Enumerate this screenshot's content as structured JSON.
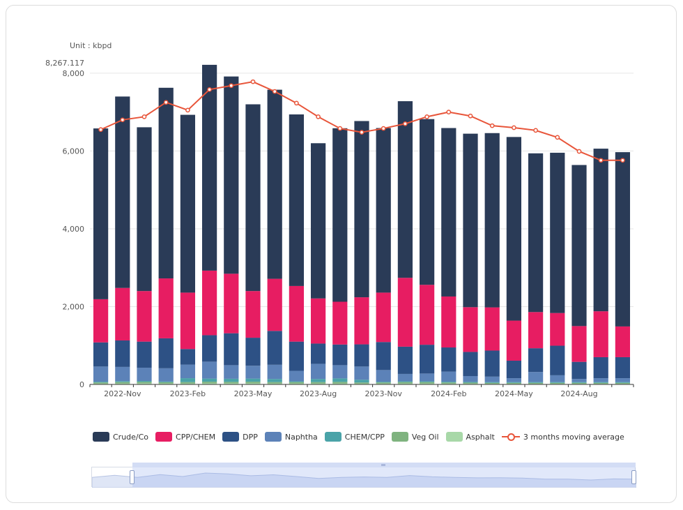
{
  "unit_label": "Unit : kbpd",
  "chart_data": {
    "type": "bar",
    "stacked": true,
    "ylim": [
      0,
      8267.117
    ],
    "y_max_label": "8,267.117",
    "y_ticks": [
      "0",
      "2,000",
      "4,000",
      "6,000",
      "8,000"
    ],
    "y_tick_values": [
      0,
      2000,
      4000,
      6000,
      8000
    ],
    "x_tick_labels": [
      "2022-Nov",
      "2023-Feb",
      "2023-May",
      "2023-Aug",
      "2023-Nov",
      "2024-Feb",
      "2024-May",
      "2024-Aug"
    ],
    "x_tick_months": [
      1,
      4,
      7,
      10,
      13,
      16,
      19,
      22
    ],
    "months": 25,
    "grid": true,
    "legend_position": "bottom",
    "series": [
      {
        "name": "Asphalt",
        "color": "#a8d8a8",
        "values": [
          20,
          25,
          30,
          25,
          25,
          30,
          30,
          30,
          25,
          25,
          25,
          25,
          20,
          20,
          25,
          25,
          20,
          20,
          15,
          15,
          15,
          15,
          15,
          15,
          15
        ]
      },
      {
        "name": "Veg Oil",
        "color": "#7fb37f",
        "values": [
          30,
          35,
          35,
          30,
          35,
          40,
          35,
          40,
          35,
          35,
          35,
          40,
          30,
          30,
          35,
          35,
          30,
          25,
          25,
          25,
          25,
          25,
          25,
          25,
          25
        ]
      },
      {
        "name": "CHEM/CPP",
        "color": "#4aa3a8",
        "values": [
          20,
          25,
          25,
          20,
          100,
          80,
          80,
          80,
          80,
          20,
          80,
          90,
          70,
          20,
          20,
          20,
          20,
          20,
          20,
          20,
          20,
          20,
          20,
          20,
          20
        ]
      },
      {
        "name": "Naphtha",
        "color": "#5c82b8",
        "values": [
          390,
          365,
          340,
          340,
          350,
          435,
          350,
          330,
          365,
          270,
          390,
          340,
          340,
          300,
          190,
          200,
          260,
          150,
          140,
          100,
          260,
          175,
          80,
          100,
          100
        ]
      },
      {
        "name": "DPP",
        "color": "#2d5185",
        "values": [
          620,
          680,
          670,
          770,
          400,
          680,
          820,
          720,
          870,
          750,
          520,
          530,
          570,
          720,
          700,
          740,
          620,
          620,
          670,
          450,
          610,
          760,
          440,
          540,
          540
        ]
      },
      {
        "name": "CPP/CHEM",
        "color": "#e71d62",
        "values": [
          1110,
          1350,
          1300,
          1540,
          1450,
          1660,
          1530,
          1200,
          1340,
          1430,
          1160,
          1100,
          1210,
          1270,
          1770,
          1540,
          1310,
          1150,
          1110,
          1030,
          930,
          840,
          920,
          1180,
          790
        ]
      },
      {
        "name": "Crude/Co",
        "color": "#2a3b57",
        "values": [
          4390,
          4920,
          4210,
          4900,
          4570,
          5290,
          5070,
          4800,
          4860,
          4410,
          3990,
          4460,
          4530,
          4230,
          4540,
          4260,
          4330,
          4460,
          4480,
          4720,
          4080,
          4120,
          4140,
          4180,
          4480
        ]
      }
    ],
    "legend_order": [
      "Crude/Co",
      "CPP/CHEM",
      "DPP",
      "Naphtha",
      "CHEM/CPP",
      "Veg Oil",
      "Asphalt"
    ],
    "line_series": {
      "name": "3 months moving average",
      "color": "#e8553a",
      "values": [
        6550,
        6800,
        6880,
        7250,
        7050,
        7580,
        7680,
        7780,
        7530,
        7230,
        6880,
        6580,
        6480,
        6580,
        6700,
        6880,
        7000,
        6900,
        6650,
        6600,
        6530,
        6350,
        5990,
        5760,
        5760
      ]
    }
  },
  "zoom": {
    "start": 0.08,
    "end": 1.0
  }
}
